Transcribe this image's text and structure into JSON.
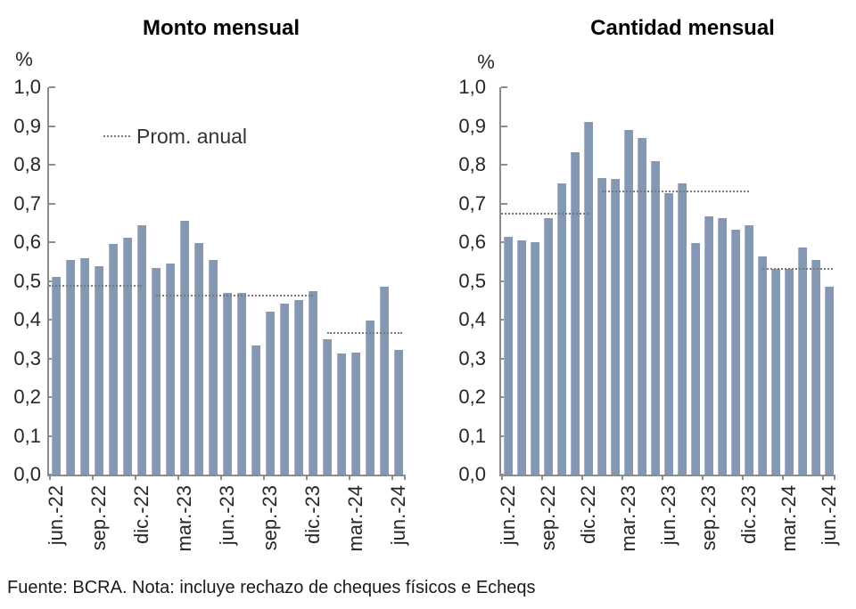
{
  "footer_note": "Fuente: BCRA. Nota: incluye rechazo de cheques físicos e Echeqs",
  "colors": {
    "bar": "#8497B3",
    "bar_edge": "#A5B2C8",
    "avg_line": "#7A7A7A",
    "axis": "#8C8C8C",
    "text": "#262626",
    "title": "#000000"
  },
  "y_axis": {
    "unit": "%",
    "tick_labels": [
      "1,0",
      "0,9",
      "0,8",
      "0,7",
      "0,6",
      "0,5",
      "0,4",
      "0,3",
      "0,2",
      "0,1",
      "0,0"
    ]
  },
  "chart_data": [
    {
      "type": "bar",
      "title": "Monto mensual",
      "ylabel": "%",
      "ylim": [
        0,
        1
      ],
      "y_tick_step": 0.1,
      "grid": false,
      "x_tick_labels": [
        "jun.-22",
        "sep.-22",
        "dic.-22",
        "mar.-23",
        "jun.-23",
        "sep.-23",
        "dic.-23",
        "mar.-24",
        "jun.-24"
      ],
      "x_tick_indices": [
        0,
        3,
        6,
        9,
        12,
        15,
        18,
        21,
        24
      ],
      "values": [
        0.51,
        0.553,
        0.558,
        0.537,
        0.595,
        0.611,
        0.644,
        0.533,
        0.545,
        0.655,
        0.598,
        0.554,
        0.47,
        0.47,
        0.334,
        0.421,
        0.441,
        0.451,
        0.474,
        0.349,
        0.313,
        0.316,
        0.398,
        0.485,
        0.322
      ],
      "avg_line": {
        "legend": "Prom. anual",
        "legend_visible": true,
        "segments": [
          {
            "from": 0,
            "to": 6,
            "value": 0.487
          },
          {
            "from": 7,
            "to": 18,
            "value": 0.462
          },
          {
            "from": 19,
            "to": 24,
            "value": 0.365
          }
        ]
      }
    },
    {
      "type": "bar",
      "title": "Cantidad mensual",
      "ylabel": "%",
      "ylim": [
        0,
        1
      ],
      "y_tick_step": 0.1,
      "grid": false,
      "x_tick_labels": [
        "jun.-22",
        "sep.-22",
        "dic.-22",
        "mar.-23",
        "jun.-23",
        "sep.-23",
        "dic.-23",
        "mar.-24",
        "jun.-24"
      ],
      "x_tick_indices": [
        0,
        3,
        6,
        9,
        12,
        15,
        18,
        21,
        24
      ],
      "values": [
        0.613,
        0.604,
        0.601,
        0.661,
        0.752,
        0.833,
        0.91,
        0.766,
        0.764,
        0.889,
        0.87,
        0.81,
        0.726,
        0.752,
        0.597,
        0.666,
        0.661,
        0.633,
        0.643,
        0.563,
        0.53,
        0.53,
        0.586,
        0.555,
        0.485
      ],
      "avg_line": {
        "legend": "Prom. anual",
        "legend_visible": false,
        "segments": [
          {
            "from": 0,
            "to": 6,
            "value": 0.673
          },
          {
            "from": 7,
            "to": 18,
            "value": 0.731
          },
          {
            "from": 19,
            "to": 24,
            "value": 0.532
          }
        ]
      }
    }
  ]
}
